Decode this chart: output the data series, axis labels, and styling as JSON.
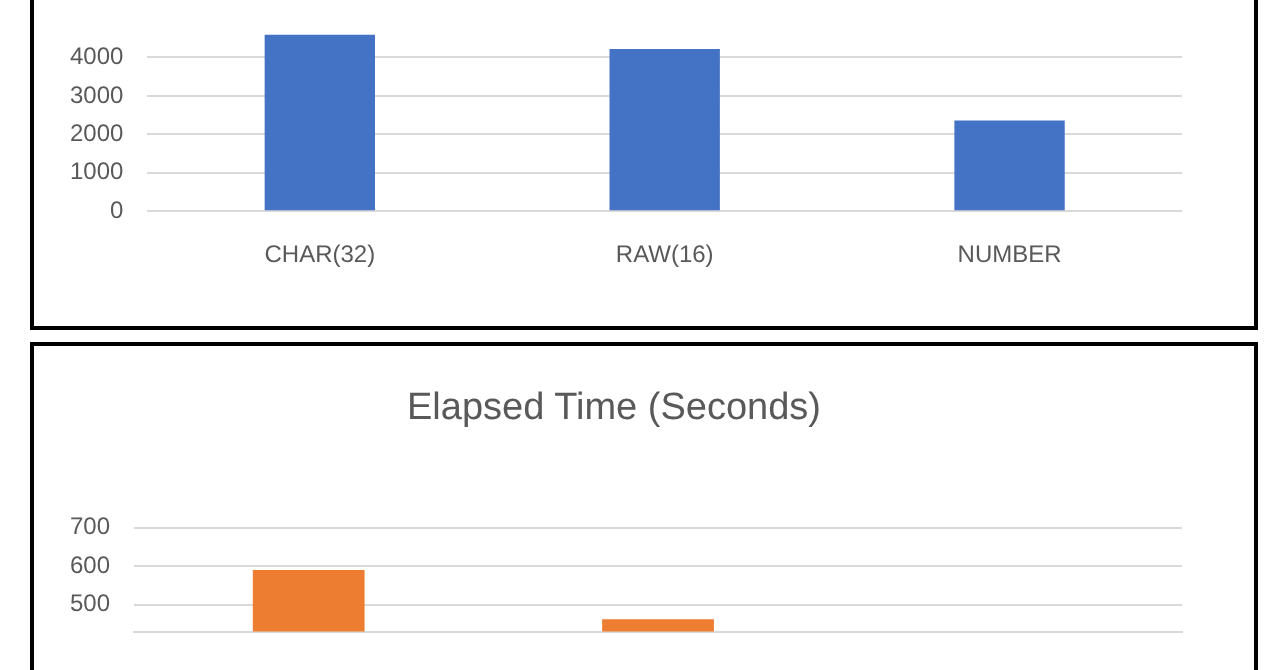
{
  "chart_data": [
    {
      "type": "bar",
      "categories": [
        "CHAR(32)",
        "RAW(16)",
        "NUMBER"
      ],
      "values": [
        4600,
        4220,
        2360
      ],
      "color": "#4472c4",
      "ylim": [
        0,
        4600
      ],
      "yticks": [
        0,
        1000,
        2000,
        3000,
        4000
      ],
      "grid": "y"
    },
    {
      "type": "bar",
      "title": "Elapsed Time (Seconds)",
      "categories": [
        null,
        null,
        null
      ],
      "values": [
        590,
        462,
        null
      ],
      "color": "#ed7d31",
      "ylim": [
        430,
        700
      ],
      "yticks": [
        500,
        600,
        700
      ],
      "grid": "y",
      "tick_labels": "y"
    }
  ]
}
